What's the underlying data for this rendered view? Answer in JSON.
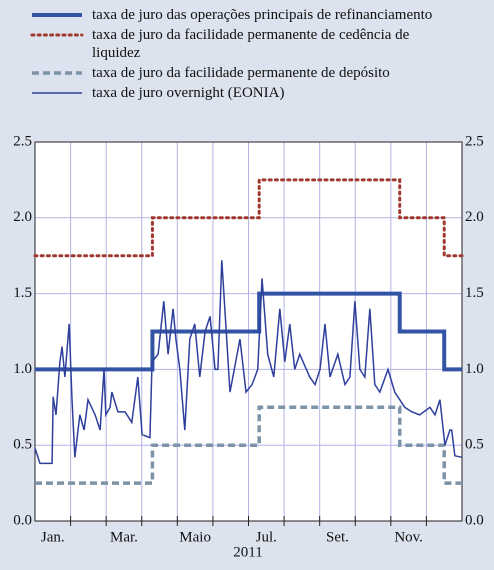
{
  "chart_data": {
    "type": "line",
    "xlabel": "2011",
    "xlim": [
      0,
      12
    ],
    "xticks": [
      {
        "value": 0.5,
        "label": "Jan."
      },
      {
        "value": 2.5,
        "label": "Mar."
      },
      {
        "value": 4.5,
        "label": "Maio"
      },
      {
        "value": 6.5,
        "label": "Jul."
      },
      {
        "value": 8.5,
        "label": "Set."
      },
      {
        "value": 10.5,
        "label": "Nov."
      }
    ],
    "ylim": [
      0,
      2.5
    ],
    "yticks": [
      {
        "value": 0,
        "label": "0.0"
      },
      {
        "value": 0.5,
        "label": "0.5"
      },
      {
        "value": 1,
        "label": "1.0"
      },
      {
        "value": 1.5,
        "label": "1.5"
      },
      {
        "value": 2,
        "label": "2.0"
      },
      {
        "value": 2.5,
        "label": "2.5"
      }
    ],
    "grid": true,
    "legend": "top",
    "series": [
      {
        "name": "taxa de juro das operações principais de refinanciamento",
        "color": "#3354a5",
        "style": "solid",
        "width": 4,
        "step": true,
        "x": [
          0,
          3.3,
          6.3,
          10.25,
          11.5,
          12
        ],
        "values": [
          1,
          1.25,
          1.5,
          1.25,
          1,
          1
        ]
      },
      {
        "name": "taxa de juro da facilidade permanente de cedência de liquidez",
        "color": "#a0382e",
        "style": "dotted",
        "width": 3,
        "step": true,
        "x": [
          0,
          3.3,
          6.3,
          10.25,
          11.5,
          12
        ],
        "values": [
          1.75,
          2,
          2.25,
          2,
          1.75,
          1.75
        ]
      },
      {
        "name": "taxa de juro da facilidade permanente de depósito",
        "color": "#7d93a8",
        "style": "dashed",
        "width": 3.5,
        "step": true,
        "x": [
          0,
          3.3,
          6.3,
          10.25,
          11.5,
          12
        ],
        "values": [
          0.25,
          0.5,
          0.75,
          0.5,
          0.25,
          0.25
        ]
      },
      {
        "name": "taxa de juro overnight (EONIA)",
        "color": "#2e3f9c",
        "style": "solid",
        "width": 1.5,
        "step": false,
        "x": [
          0,
          0.14,
          0.28,
          0.48,
          0.51,
          0.59,
          0.7,
          0.76,
          0.84,
          0.96,
          1.04,
          1.12,
          1.26,
          1.38,
          1.49,
          1.69,
          1.83,
          1.94,
          1.99,
          2.11,
          2.16,
          2.33,
          2.53,
          2.72,
          2.89,
          3.01,
          3.23,
          3.29,
          3.46,
          3.62,
          3.74,
          3.88,
          3.96,
          4.07,
          4.21,
          4.35,
          4.49,
          4.63,
          4.78,
          4.92,
          5.06,
          5.14,
          5.25,
          5.48,
          5.76,
          5.93,
          6.1,
          6.26,
          6.38,
          6.54,
          6.71,
          6.88,
          7.02,
          7.16,
          7.3,
          7.44,
          7.72,
          7.87,
          8.01,
          8.15,
          8.29,
          8.51,
          8.71,
          8.85,
          8.99,
          9.13,
          9.27,
          9.41,
          9.55,
          9.69,
          9.92,
          10.11,
          10.25,
          10.39,
          10.59,
          10.81,
          11.1,
          11.24,
          11.38,
          11.52,
          11.66,
          11.71,
          11.8,
          12
        ],
        "values": [
          0.48,
          0.38,
          0.38,
          0.38,
          0.82,
          0.7,
          1.05,
          1.15,
          0.95,
          1.3,
          0.8,
          0.42,
          0.7,
          0.6,
          0.8,
          0.7,
          0.6,
          1.0,
          0.7,
          0.75,
          0.85,
          0.72,
          0.72,
          0.65,
          0.95,
          0.57,
          0.55,
          1.05,
          1.1,
          1.45,
          1.1,
          1.4,
          1.2,
          1.0,
          0.6,
          1.2,
          1.3,
          0.95,
          1.25,
          1.35,
          1.0,
          1.0,
          1.72,
          0.85,
          1.2,
          0.85,
          0.9,
          1.0,
          1.6,
          1.1,
          0.95,
          1.4,
          1.05,
          1.3,
          1.0,
          1.1,
          0.95,
          0.9,
          1.0,
          1.3,
          0.95,
          1.1,
          0.9,
          0.95,
          1.45,
          1.0,
          0.95,
          1.4,
          0.9,
          0.85,
          1.0,
          0.85,
          0.8,
          0.75,
          0.72,
          0.7,
          0.75,
          0.7,
          0.8,
          0.5,
          0.6,
          0.6,
          0.43,
          0.42
        ]
      }
    ]
  }
}
